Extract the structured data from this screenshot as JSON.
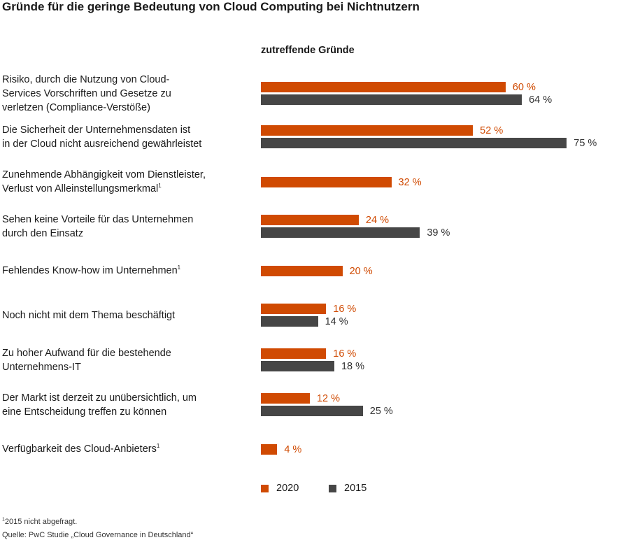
{
  "colors": {
    "series_2020": "#d04a02",
    "series_2015": "#464646"
  },
  "chart_data": {
    "type": "bar",
    "orientation": "horizontal",
    "title": "Gründe für die geringe Bedeutung von Cloud Computing bei Nichtnutzern",
    "subtitle": "zutreffende Gründe",
    "unit": "%",
    "xlim": [
      0,
      80
    ],
    "grid": false,
    "legend_position": "bottom",
    "categories": [
      {
        "lines": [
          "Risiko, durch die Nutzung von Cloud-",
          "Services Vorschriften und Gesetze zu",
          "verletzen (Compliance-Verstöße)"
        ],
        "note": ""
      },
      {
        "lines": [
          "Die Sicherheit der Unternehmensdaten ist",
          "in der Cloud nicht ausreichend gewährleistet"
        ],
        "note": ""
      },
      {
        "lines": [
          "Zunehmende Abhängigkeit vom Dienstleister,",
          "Verlust von Alleinstellungsmerkmal"
        ],
        "note": "1"
      },
      {
        "lines": [
          "Sehen keine Vorteile für das Unternehmen",
          "durch den Einsatz"
        ],
        "note": ""
      },
      {
        "lines": [
          "Fehlendes Know-how im Unternehmen"
        ],
        "note": "1"
      },
      {
        "lines": [
          "Noch nicht mit dem Thema beschäftigt"
        ],
        "note": ""
      },
      {
        "lines": [
          "Zu hoher Aufwand für die bestehende",
          "Unternehmens-IT"
        ],
        "note": ""
      },
      {
        "lines": [
          "Der Markt ist derzeit zu unübersichtlich, um",
          "eine Entscheidung treffen zu können"
        ],
        "note": ""
      },
      {
        "lines": [
          "Verfügbarkeit des Cloud-Anbieters"
        ],
        "note": "1"
      }
    ],
    "series": [
      {
        "name": "2020",
        "values": [
          60,
          52,
          32,
          24,
          20,
          16,
          16,
          12,
          4
        ],
        "labels": [
          "60 %",
          "52 %",
          "32 %",
          "24 %",
          "20 %",
          "16 %",
          "16 %",
          "12 %",
          "4 %"
        ]
      },
      {
        "name": "2015",
        "values": [
          64,
          75,
          null,
          39,
          null,
          14,
          18,
          25,
          null
        ],
        "labels": [
          "64 %",
          "75 %",
          null,
          "39 %",
          null,
          "14 %",
          "18 %",
          "25 %",
          null
        ]
      }
    ]
  },
  "footnote": {
    "mark": "1",
    "text": "2015 nicht abgefragt."
  },
  "source": "Quelle: PwC Studie „Cloud Governance in Deutschland“"
}
